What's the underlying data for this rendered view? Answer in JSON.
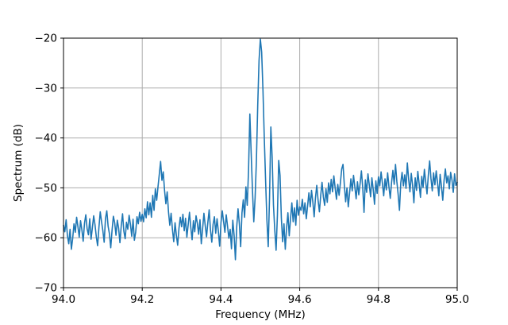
{
  "figure": {
    "background": "#ffffff",
    "spine_color": "#000000",
    "text_color": "#000000"
  },
  "chart_data": {
    "type": "line",
    "title": "",
    "xlabel": "Frequency (MHz)",
    "ylabel": "Spectrum (dB)",
    "xlim": [
      94.0,
      95.0
    ],
    "ylim": [
      -70,
      -20
    ],
    "grid": true,
    "grid_color": "#ababab",
    "line_color": "#1f77b4",
    "legend": "none",
    "xticks": {
      "values": [
        94.0,
        94.2,
        94.4,
        94.6,
        94.8,
        95.0
      ],
      "labels": [
        "94.0",
        "94.2",
        "94.4",
        "94.6",
        "94.8",
        "95.0"
      ]
    },
    "yticks": {
      "values": [
        -20,
        -30,
        -40,
        -50,
        -60,
        -70
      ],
      "labels": [
        "−20",
        "−30",
        "−40",
        "−50",
        "−60",
        "−70"
      ]
    },
    "annotations": {
      "main_peak": {
        "x_mhz": 94.5,
        "y_db": -20
      },
      "secondary_spur": {
        "x_mhz": 94.25,
        "y_db": -44.7
      }
    },
    "series": [
      {
        "name": "spectrum",
        "x0": 94.0,
        "dx": 0.00333333333,
        "values": [
          -57.5,
          -58.8,
          -56.4,
          -59.6,
          -61.2,
          -58.3,
          -62.3,
          -60.1,
          -57.2,
          -58.9,
          -55.9,
          -57.8,
          -59.9,
          -56.6,
          -58.4,
          -60.7,
          -57.1,
          -55.4,
          -58.2,
          -59.4,
          -56.2,
          -60.3,
          -58.0,
          -55.6,
          -57.4,
          -59.8,
          -61.6,
          -57.9,
          -54.8,
          -56.8,
          -58.6,
          -60.9,
          -56.1,
          -54.6,
          -57.7,
          -59.2,
          -62.0,
          -58.5,
          -55.7,
          -57.0,
          -59.5,
          -56.5,
          -58.1,
          -61.0,
          -57.6,
          -55.2,
          -58.7,
          -60.2,
          -56.9,
          -58.3,
          -55.5,
          -57.3,
          -59.7,
          -56.3,
          -60.5,
          -58.9,
          -55.8,
          -57.2,
          -54.9,
          -56.7,
          -55.3,
          -56.8,
          -54.2,
          -56.0,
          -52.8,
          -55.4,
          -53.0,
          -55.9,
          -51.5,
          -54.5,
          -50.2,
          -52.5,
          -49.8,
          -47.3,
          -44.7,
          -48.5,
          -46.8,
          -50.5,
          -53.2,
          -50.8,
          -54.8,
          -57.5,
          -55.1,
          -58.3,
          -60.8,
          -57.0,
          -59.5,
          -61.5,
          -58.1,
          -55.9,
          -57.8,
          -55.3,
          -58.6,
          -56.1,
          -59.9,
          -57.4,
          -54.9,
          -57.9,
          -60.4,
          -56.6,
          -58.8,
          -55.6,
          -57.1,
          -59.3,
          -56.4,
          -61.2,
          -58.2,
          -55.1,
          -57.6,
          -59.8,
          -56.9,
          -54.4,
          -58.4,
          -60.9,
          -57.3,
          -55.8,
          -59.1,
          -56.2,
          -58.7,
          -61.7,
          -57.0,
          -54.6,
          -56.8,
          -58.9,
          -55.4,
          -57.7,
          -60.1,
          -58.3,
          -62.2,
          -56.5,
          -59.5,
          -64.4,
          -57.8,
          -54.2,
          -57.2,
          -61.8,
          -55.0,
          -52.4,
          -55.9,
          -49.8,
          -53.5,
          -46.5,
          -35.2,
          -43.0,
          -50.5,
          -56.8,
          -52.0,
          -44.5,
          -33.5,
          -24.5,
          -20.2,
          -22.8,
          -30.5,
          -40.0,
          -48.5,
          -56.5,
          -61.8,
          -52.0,
          -37.8,
          -44.0,
          -53.5,
          -58.5,
          -62.5,
          -55.5,
          -44.5,
          -47.5,
          -56.0,
          -60.8,
          -57.2,
          -62.3,
          -58.0,
          -55.0,
          -59.6,
          -56.2,
          -53.0,
          -56.8,
          -54.0,
          -57.5,
          -52.5,
          -55.5,
          -53.8,
          -54.5,
          -52.3,
          -55.2,
          -53.0,
          -56.2,
          -53.6,
          -51.0,
          -53.8,
          -50.5,
          -52.8,
          -55.8,
          -52.0,
          -49.5,
          -52.5,
          -54.8,
          -51.5,
          -48.9,
          -51.8,
          -53.5,
          -50.2,
          -52.9,
          -49.0,
          -51.2,
          -48.3,
          -50.8,
          -47.6,
          -50.0,
          -52.3,
          -49.3,
          -51.5,
          -49.0,
          -46.2,
          -45.3,
          -49.5,
          -52.8,
          -50.0,
          -53.8,
          -51.0,
          -48.2,
          -50.6,
          -47.5,
          -49.8,
          -52.2,
          -48.8,
          -51.4,
          -49.2,
          -46.6,
          -49.9,
          -54.9,
          -48.4,
          -50.9,
          -47.2,
          -49.4,
          -51.8,
          -48.0,
          -50.3,
          -53.3,
          -48.6,
          -51.1,
          -47.8,
          -49.6,
          -46.8,
          -49.1,
          -51.6,
          -48.2,
          -50.4,
          -47.0,
          -49.8,
          -52.1,
          -48.9,
          -46.5,
          -49.3,
          -45.3,
          -48.7,
          -51.3,
          -54.5,
          -49.0,
          -46.9,
          -49.6,
          -47.4,
          -50.1,
          -45.0,
          -48.3,
          -50.8,
          -47.1,
          -49.5,
          -53.0,
          -48.0,
          -50.5,
          -46.7,
          -49.2,
          -51.9,
          -47.7,
          -49.9,
          -46.3,
          -48.8,
          -51.2,
          -47.5,
          -44.6,
          -48.1,
          -50.6,
          -47.0,
          -49.4,
          -46.6,
          -48.9,
          -51.6,
          -47.3,
          -49.7,
          -52.5,
          -48.5,
          -46.2,
          -49.0,
          -47.6,
          -50.2,
          -46.9,
          -48.4,
          -50.9,
          -47.2,
          -49.5,
          -48.9
        ]
      }
    ]
  }
}
